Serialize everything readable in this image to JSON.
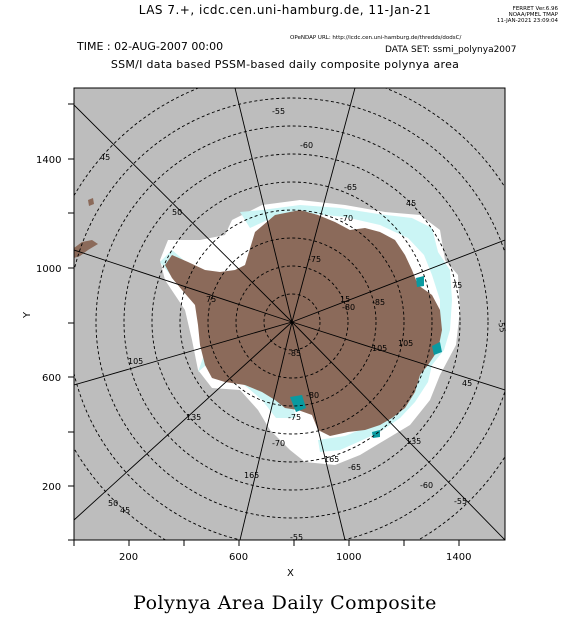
{
  "header": {
    "title": "LAS 7.+, icdc.cen.uni-hamburg.de, 11-Jan-21",
    "ferret_lines": [
      "FERRET Ver.6.96",
      "NOAA/PMEL TMAP",
      "11-JAN-2021 23:09:04"
    ],
    "opendap": "OPeNDAP URL: http://icdc.cen.uni-hamburg.de/thredds/dodsC/",
    "time_label": "TIME : 02-AUG-2007 00:00",
    "dataset": "DATA SET: ssmi_polynya2007",
    "subtitle": "SSM/I data based PSSM-based daily composite polynya area"
  },
  "axes": {
    "x_label": "X",
    "y_label": "Y",
    "x_ticks": [
      "200",
      "600",
      "1000",
      "1400"
    ],
    "y_ticks": [
      "1400",
      "1000",
      "600",
      "200"
    ]
  },
  "graticule_labels": {
    "latitudes": [
      "-55",
      "-60",
      "-65",
      "-70",
      "-75",
      "-80",
      "-85",
      "-85",
      "-80",
      "-75",
      "-70",
      "-65",
      "-60",
      "-55",
      "-55",
      "-55"
    ],
    "longitudes": [
      "45",
      "50",
      "75",
      "105",
      "105",
      "135",
      "165",
      "165",
      "135",
      "105",
      "75",
      "45",
      "15",
      "45",
      "50",
      "45"
    ]
  },
  "footer": {
    "title": "Polynya Area Daily Composite"
  },
  "colors": {
    "ocean": "#bdbdbd",
    "land": "#8b6a5a",
    "sea_ice": "#ffffff",
    "polynya_light": "#c8f4f4",
    "polynya_dark": "#0a9aa0"
  }
}
